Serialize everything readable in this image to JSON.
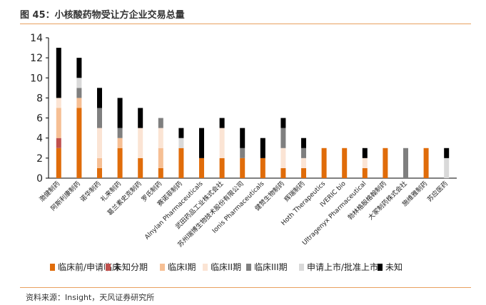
{
  "figure_title": "图 45：小核酸药物受让方企业交易总量",
  "source": "资料来源：Insight，天风证券研究所",
  "chart_data": {
    "type": "bar",
    "stacked": true,
    "title": "小核酸药物受让方企业交易总量",
    "xlabel": "",
    "ylabel": "",
    "ylim": [
      0,
      14
    ],
    "yticks": [
      0,
      2,
      4,
      6,
      8,
      10,
      12,
      14
    ],
    "legend_position": "bottom",
    "categories": [
      "渤健制药",
      "阿斯利康制药",
      "诺华制药",
      "礼来制药",
      "葛兰素史克制药",
      "罗氏制药",
      "赛诺菲制药",
      "Alnylan Pharmaceuticals",
      "武田药品工业株式会社",
      "苏州瑞博生物技术股份有限公司",
      "Ionis Pharmaceuticals",
      "健赞生物制药",
      "辉瑞制药",
      "Hoth Therapeutics",
      "IVERIC bio",
      "Ultragenyx Pharmaceutical",
      "勃林格殷格翰制药",
      "大冢制药株式会社",
      "施维雅制药",
      "苏应医药"
    ],
    "series": [
      {
        "name": "临床前/申请临床",
        "color": "#e06c0a",
        "values": [
          3,
          7,
          1,
          3,
          2,
          1,
          3,
          2,
          2,
          2,
          2,
          1,
          1,
          3,
          3,
          1,
          3,
          0,
          3,
          0
        ]
      },
      {
        "name": "未知分期",
        "color": "#c0504d",
        "values": [
          1,
          0,
          0,
          0,
          0,
          0,
          0,
          0,
          0,
          0,
          0,
          0,
          0,
          0,
          0,
          0,
          0,
          0,
          0,
          0
        ]
      },
      {
        "name": "临床I期",
        "color": "#f6bf94",
        "values": [
          3,
          1,
          1,
          1,
          0,
          2,
          0,
          0,
          0,
          0,
          0,
          0,
          0,
          0,
          0,
          0,
          0,
          0,
          0,
          0
        ]
      },
      {
        "name": "临床II期",
        "color": "#fbe4d4",
        "values": [
          1,
          0,
          3,
          0,
          3,
          2,
          0,
          0,
          3,
          0,
          0,
          2,
          1,
          0,
          0,
          1,
          0,
          0,
          0,
          0
        ]
      },
      {
        "name": "临床III期",
        "color": "#7f7f7f",
        "values": [
          0,
          1,
          2,
          1,
          0,
          1,
          0,
          0,
          0,
          1,
          0,
          2,
          1,
          0,
          0,
          0,
          0,
          3,
          0,
          0
        ]
      },
      {
        "name": "申请上市/批准上市",
        "color": "#d9d9d9",
        "values": [
          0,
          1,
          0,
          0,
          0,
          0,
          1,
          0,
          0,
          0,
          0,
          0,
          0,
          0,
          0,
          0,
          0,
          0,
          0,
          2
        ]
      },
      {
        "name": "未知",
        "color": "#000000",
        "values": [
          5,
          2,
          2,
          3,
          2,
          0,
          1,
          3,
          1,
          2,
          2,
          1,
          1,
          0,
          0,
          1,
          0,
          0,
          0,
          1
        ]
      }
    ]
  }
}
